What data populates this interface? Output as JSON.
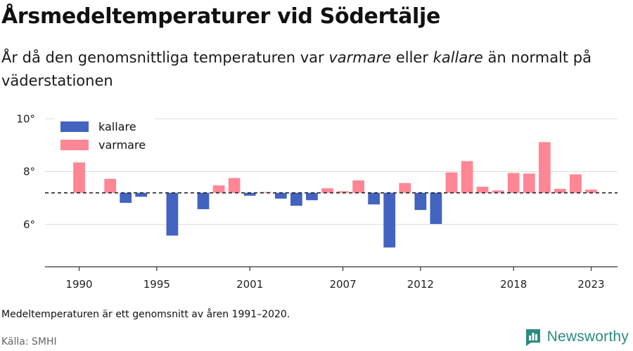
{
  "title": "Årsmedeltemperaturer vid Södertälje",
  "subtitle": {
    "before": "År då den genomsnittliga temperaturen var ",
    "warm_word": "varmare",
    "middle": " eller ",
    "cold_word": "kallare",
    "after": " än normalt på väderstationen"
  },
  "note": "Medeltemperaturen är ett genomsnitt av åren 1991–2020.",
  "source": "Källa: SMHI",
  "brand": {
    "name": "Newsworthy",
    "color": "#2b8a82",
    "icon": "newsworthy-logo-icon"
  },
  "colors": {
    "kallare": "#4263c0",
    "varmare": "#ff8795",
    "baseline": "#222222",
    "grid": "#dddddd"
  },
  "chart_data": {
    "type": "bar",
    "baseline": 7.2,
    "ylim": [
      4.4,
      10.3
    ],
    "xlim": [
      1987.8,
      2024.7
    ],
    "yticks": [
      6,
      8,
      10
    ],
    "ytick_labels": [
      "6°",
      "8°",
      "10°"
    ],
    "xticks": [
      1990,
      1995,
      2001,
      2007,
      2012,
      2018,
      2023
    ],
    "xtick_labels": [
      "1990",
      "1995",
      "2001",
      "2007",
      "2012",
      "2018",
      "2023"
    ],
    "legend": {
      "position": "top-left",
      "entries": [
        {
          "key": "kallare",
          "label": "kallare"
        },
        {
          "key": "varmare",
          "label": "varmare"
        }
      ]
    },
    "grid": true,
    "series": [
      {
        "year": 1990,
        "value": 8.35
      },
      {
        "year": 1992,
        "value": 7.73
      },
      {
        "year": 1993,
        "value": 6.82
      },
      {
        "year": 1994,
        "value": 7.05
      },
      {
        "year": 1996,
        "value": 5.58
      },
      {
        "year": 1998,
        "value": 6.58
      },
      {
        "year": 1999,
        "value": 7.48
      },
      {
        "year": 2000,
        "value": 7.76
      },
      {
        "year": 2001,
        "value": 7.09
      },
      {
        "year": 2002,
        "value": 7.23
      },
      {
        "year": 2003,
        "value": 6.98
      },
      {
        "year": 2004,
        "value": 6.71
      },
      {
        "year": 2005,
        "value": 6.92
      },
      {
        "year": 2006,
        "value": 7.37
      },
      {
        "year": 2007,
        "value": 7.26
      },
      {
        "year": 2008,
        "value": 7.67
      },
      {
        "year": 2009,
        "value": 6.76
      },
      {
        "year": 2010,
        "value": 5.13
      },
      {
        "year": 2011,
        "value": 7.57
      },
      {
        "year": 2012,
        "value": 6.55
      },
      {
        "year": 2013,
        "value": 6.02
      },
      {
        "year": 2014,
        "value": 7.97
      },
      {
        "year": 2015,
        "value": 8.4
      },
      {
        "year": 2016,
        "value": 7.43
      },
      {
        "year": 2017,
        "value": 7.29
      },
      {
        "year": 2018,
        "value": 7.95
      },
      {
        "year": 2019,
        "value": 7.93
      },
      {
        "year": 2020,
        "value": 9.12
      },
      {
        "year": 2021,
        "value": 7.35
      },
      {
        "year": 2022,
        "value": 7.9
      },
      {
        "year": 2023,
        "value": 7.32
      }
    ]
  }
}
